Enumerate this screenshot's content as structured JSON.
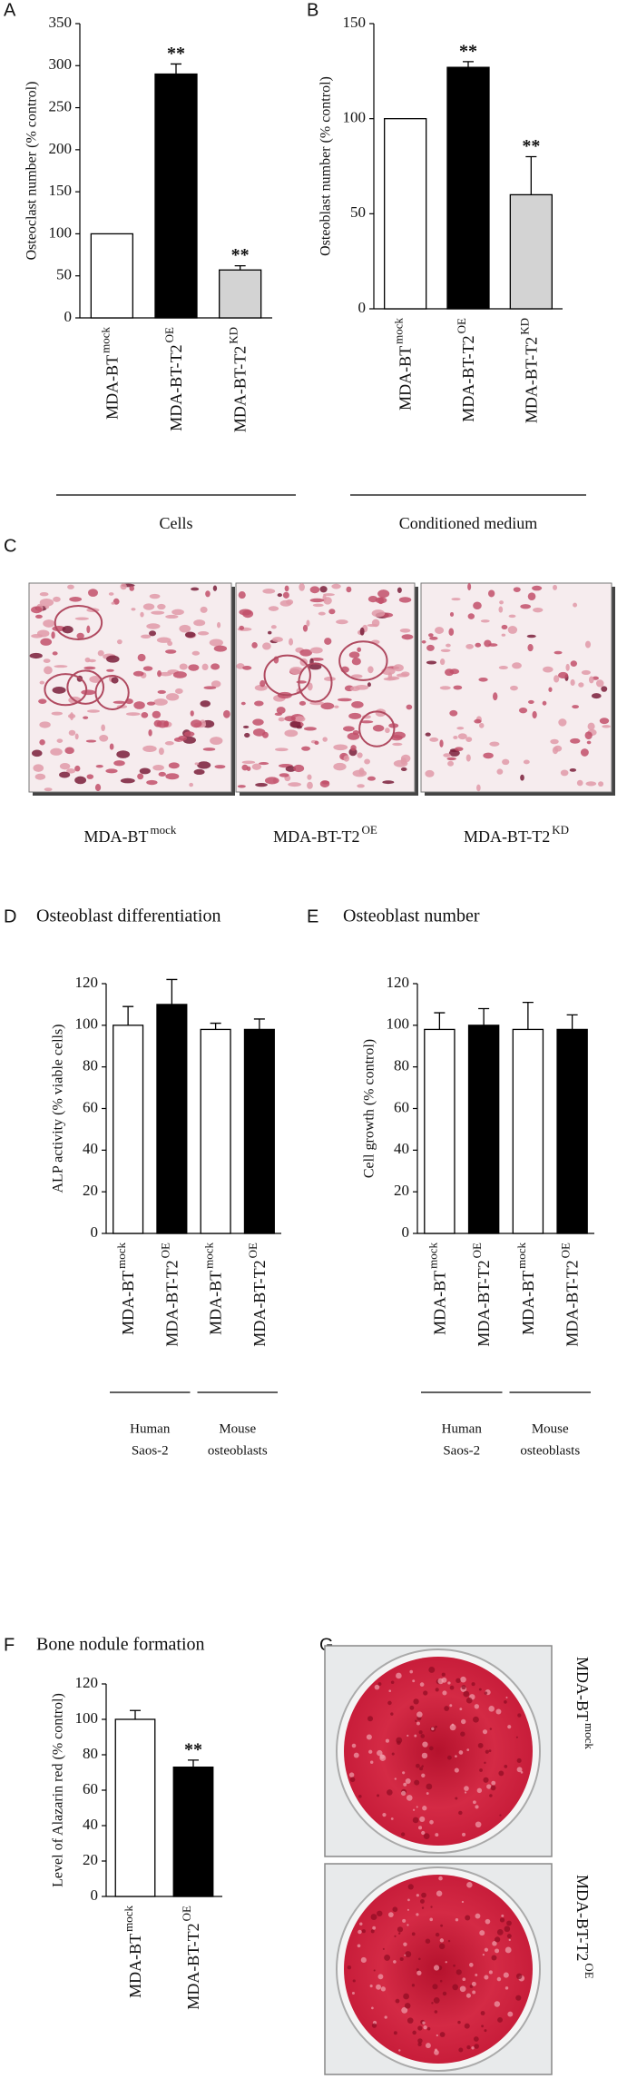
{
  "chart_data": [
    {
      "type": "bar",
      "panel": "A",
      "ylabel": "Osteoclast number (% control)",
      "categories": [
        "MDA-BT",
        "MDA-BT-T2",
        "MDA-BT-T2"
      ],
      "category_superscripts": [
        "mock",
        "OE",
        "KD"
      ],
      "values": [
        100,
        290,
        57
      ],
      "errors": [
        null,
        12,
        5
      ],
      "colors": [
        "#ffffff",
        "#000000",
        "#d3d3d3"
      ],
      "annotations": [
        null,
        "**",
        "**"
      ],
      "groups": [
        [
          "Cells"
        ]
      ],
      "ylim": [
        0,
        350
      ],
      "yticks": [
        0,
        50,
        100,
        150,
        200,
        250,
        300,
        350
      ]
    },
    {
      "type": "bar",
      "panel": "B",
      "ylabel": "Osteoblast number (% control)",
      "categories": [
        "MDA-BT",
        "MDA-BT-T2",
        "MDA-BT-T2"
      ],
      "category_superscripts": [
        "mock",
        "OE",
        "KD"
      ],
      "values": [
        100,
        127,
        60
      ],
      "errors": [
        null,
        3,
        20
      ],
      "colors": [
        "#ffffff",
        "#000000",
        "#d3d3d3"
      ],
      "annotations": [
        null,
        "**",
        "**"
      ],
      "groups": [
        [
          "Conditioned medium"
        ]
      ],
      "ylim": [
        0,
        150
      ],
      "yticks": [
        0,
        50,
        100,
        150
      ]
    },
    {
      "type": "bar",
      "panel": "D",
      "title": "Osteoblast differentiation",
      "ylabel": "ALP activity (% viable cells)",
      "categories": [
        "MDA-BT",
        "MDA-BT-T2",
        "MDA-BT",
        "MDA-BT-T2"
      ],
      "category_superscripts": [
        "mock",
        "OE",
        "mock",
        "OE"
      ],
      "values": [
        100,
        110,
        98,
        98
      ],
      "errors": [
        9,
        12,
        3,
        5
      ],
      "colors": [
        "#ffffff",
        "#000000",
        "#ffffff",
        "#000000"
      ],
      "groups": [
        [
          "Human",
          "Saos-2"
        ],
        [
          "Mouse",
          "osteoblasts"
        ]
      ],
      "ylim": [
        0,
        120
      ],
      "yticks": [
        0,
        20,
        40,
        60,
        80,
        100,
        120
      ]
    },
    {
      "type": "bar",
      "panel": "E",
      "title": "Osteoblast number",
      "ylabel": "Cell growth (% control)",
      "categories": [
        "MDA-BT",
        "MDA-BT-T2",
        "MDA-BT",
        "MDA-BT-T2"
      ],
      "category_superscripts": [
        "mock",
        "OE",
        "mock",
        "OE"
      ],
      "values": [
        98,
        100,
        98,
        98
      ],
      "errors": [
        8,
        8,
        13,
        7
      ],
      "colors": [
        "#ffffff",
        "#000000",
        "#ffffff",
        "#000000"
      ],
      "groups": [
        [
          "Human",
          "Saos-2"
        ],
        [
          "Mouse",
          "osteoblasts"
        ]
      ],
      "ylim": [
        0,
        120
      ],
      "yticks": [
        0,
        20,
        40,
        60,
        80,
        100,
        120
      ]
    },
    {
      "type": "bar",
      "panel": "F",
      "title": "Bone nodule formation",
      "ylabel": "Level of Alazarin red (% control)",
      "categories": [
        "MDA-BT",
        "MDA-BT-T2"
      ],
      "category_superscripts": [
        "mock",
        "OE"
      ],
      "values": [
        100,
        73
      ],
      "errors": [
        5,
        4
      ],
      "colors": [
        "#ffffff",
        "#000000"
      ],
      "annotations": [
        null,
        "**"
      ],
      "ylim": [
        0,
        120
      ],
      "yticks": [
        0,
        20,
        40,
        60,
        80,
        100,
        120
      ]
    }
  ],
  "photo_panels": [
    {
      "panel": "C",
      "captions": [
        "MDA-BT",
        "MDA-BT-T2",
        "MDA-BT-T2"
      ],
      "caption_superscripts": [
        "mock",
        "OE",
        "KD"
      ]
    },
    {
      "panel": "G",
      "captions": [
        "MDA-BT",
        "MDA-BT-T2"
      ],
      "caption_superscripts": [
        "mock",
        "OE"
      ]
    }
  ]
}
